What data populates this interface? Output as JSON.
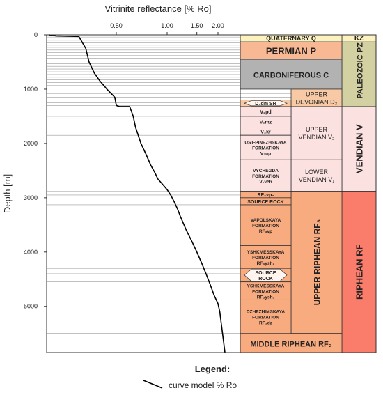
{
  "chart_data": {
    "type": "line",
    "title": "",
    "xlabel": "Vitrinite reflectance [% Ro]",
    "ylabel": "Depth [m]",
    "x_scale": "log",
    "x_ticks": [
      "0.50",
      "1.00",
      "1.50",
      "2.00"
    ],
    "x_tick_values": [
      0.5,
      1.0,
      1.5,
      2.0
    ],
    "y_ticks": [
      "0",
      "1000",
      "2000",
      "3000",
      "4000",
      "5000"
    ],
    "y_tick_values": [
      0,
      1000,
      2000,
      3000,
      4000,
      5000
    ],
    "ylim": [
      0,
      5850
    ],
    "y_inverted": true,
    "series": [
      {
        "name": "curve model % Ro",
        "color": "#000000",
        "x": [
          0.2,
          0.22,
          0.3,
          0.33,
          0.345,
          0.37,
          0.4,
          0.44,
          0.49,
          0.5,
          0.52,
          0.6,
          0.63,
          0.65,
          0.7,
          0.75,
          0.8,
          0.85,
          0.88,
          0.95,
          1.0,
          1.05,
          1.1,
          1.15,
          1.2,
          1.3,
          1.4,
          1.5,
          1.6,
          1.7,
          1.8,
          1.9,
          2.0,
          2.05,
          2.2
        ],
        "y": [
          0,
          20,
          30,
          250,
          500,
          700,
          850,
          1000,
          1150,
          1300,
          1320,
          1320,
          1500,
          1700,
          2000,
          2200,
          2400,
          2550,
          2650,
          2770,
          2850,
          2950,
          3070,
          3200,
          3350,
          3600,
          3800,
          4000,
          4200,
          4400,
          4600,
          4800,
          4950,
          5100,
          5850
        ]
      }
    ],
    "legend": {
      "title": "Legend:",
      "position": "bottom-center",
      "entries": [
        "curve model % Ro"
      ]
    },
    "horizontal_lines": [
      40,
      100,
      150,
      190,
      230,
      280,
      330,
      380,
      430,
      480,
      530,
      580,
      630,
      680,
      730,
      780,
      830,
      880,
      930,
      980,
      1030,
      1080,
      1150,
      1200,
      1250,
      1300,
      1500,
      1700,
      1850,
      2300,
      2880,
      2950,
      3130,
      4300,
      4400,
      4550,
      4880,
      5500
    ],
    "stratigraphy": {
      "era_header": "KZ",
      "eras": [
        {
          "label": "PALEOZOIC PZ",
          "top": 0,
          "bottom": 1320,
          "color": "#d3d1a1"
        },
        {
          "label": "VENDIAN V",
          "top": 1320,
          "bottom": 2880,
          "color": "#fce1e1"
        },
        {
          "label": "RIPHEAN RF",
          "top": 2880,
          "bottom": 5850,
          "color": "#fa7c6a"
        }
      ],
      "systems": [
        {
          "label": "QUATERNARY Q",
          "top": 0,
          "bottom": 130,
          "color": "#fcf2bf",
          "header": true
        },
        {
          "label": "PERMIAN P",
          "top": 130,
          "bottom": 450,
          "color": "#f8b894"
        },
        {
          "label": "CARBONIFEROUS C",
          "top": 450,
          "bottom": 1000,
          "color": "#b2b2b2"
        },
        {
          "label": "UPPER DEVONIAN D",
          "sub": "3",
          "top": 1000,
          "bottom": 1320,
          "color": "#f7c9a5"
        },
        {
          "label": "UPPER VENDIAN V",
          "sub": "2",
          "top": 1320,
          "bottom": 2300,
          "color": "#fce1e1"
        },
        {
          "label": "LOWER VENDIAN V",
          "sub": "1",
          "top": 2300,
          "bottom": 2880,
          "color": "#fce1e1"
        },
        {
          "label": "UPPER RIPHEAN RF",
          "sub": "3",
          "top": 2880,
          "bottom": 5500,
          "color": "#f9ab80"
        },
        {
          "label": "MIDDLE RIPHEAN RF",
          "sub": "2",
          "top": 5500,
          "bottom": 5850,
          "color": "#f9ab80"
        }
      ],
      "formations": [
        {
          "lines": [
            "D₃dm SR"
          ],
          "top": 1200,
          "bottom": 1320,
          "color": "#f7c9a5",
          "hex": true
        },
        {
          "lines": [
            "V₂pd"
          ],
          "top": 1320,
          "bottom": 1500,
          "color": "#fce1e1"
        },
        {
          "lines": [
            "V₂mz"
          ],
          "top": 1500,
          "bottom": 1700,
          "color": "#fce1e1"
        },
        {
          "lines": [
            "V₂kr"
          ],
          "top": 1700,
          "bottom": 1850,
          "color": "#fce1e1"
        },
        {
          "lines": [
            "UST-PINEZHSKAYA",
            "FORMATION",
            "V₂up"
          ],
          "top": 1850,
          "bottom": 2300,
          "color": "#fce1e1"
        },
        {
          "lines": [
            "VYCHEGDA",
            "FORMATION",
            "V₁včh"
          ],
          "top": 2300,
          "bottom": 2880,
          "color": "#fce1e1"
        },
        {
          "lines": [
            "RF₃vp₂"
          ],
          "top": 2880,
          "bottom": 3000,
          "color": "#f9ab80"
        },
        {
          "lines": [
            "SOURCE ROCK"
          ],
          "top": 3000,
          "bottom": 3130,
          "color": "#f9ab80"
        },
        {
          "lines": [
            "VAPOLSKAYA",
            "FORMATION",
            "RF₃vp"
          ],
          "top": 3130,
          "bottom": 3880,
          "color": "#f9ab80"
        },
        {
          "lines": [
            "YSHKMESSKAYA",
            "FORMATION",
            "RF₃ysh₂"
          ],
          "top": 3880,
          "bottom": 4300,
          "color": "#f9ab80"
        },
        {
          "lines": [
            "SOURCE",
            "ROCK"
          ],
          "top": 4300,
          "bottom": 4550,
          "color": "#f9ab80",
          "hex": true
        },
        {
          "lines": [
            "YSHKMESSKAYA",
            "FORMATION",
            "RF₃ysh₁"
          ],
          "top": 4550,
          "bottom": 4880,
          "color": "#f9ab80"
        },
        {
          "lines": [
            "DZHEZHIMSKAYA",
            "FORMATION",
            "RF₃dz"
          ],
          "top": 4880,
          "bottom": 5500,
          "color": "#f9ab80"
        }
      ]
    }
  }
}
